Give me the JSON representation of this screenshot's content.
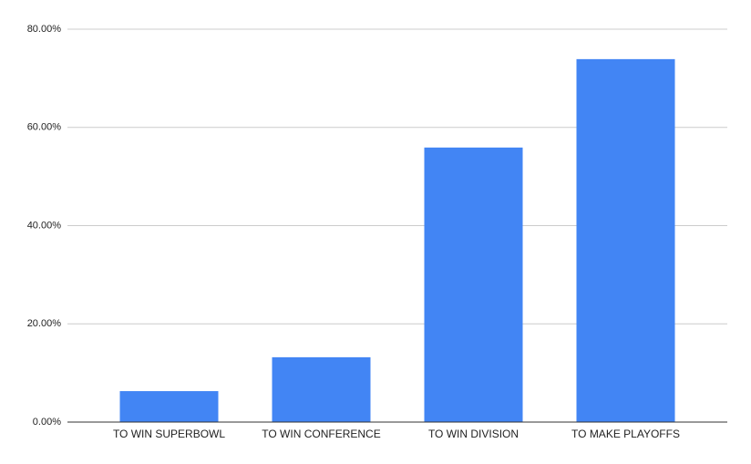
{
  "chart_data": {
    "type": "bar",
    "categories": [
      "TO WIN SUPERBOWL",
      "TO WIN CONFERENCE",
      "TO WIN DIVISION",
      "TO MAKE PLAYOFFS"
    ],
    "values": [
      6.3,
      13.2,
      55.9,
      73.9
    ],
    "color": "#4285f4",
    "ylim": [
      0,
      80
    ],
    "yticks": [
      {
        "value": 0,
        "label": "0.00%"
      },
      {
        "value": 20,
        "label": "20.00%"
      },
      {
        "value": 40,
        "label": "40.00%"
      },
      {
        "value": 60,
        "label": "60.00%"
      },
      {
        "value": 80,
        "label": "80.00%"
      }
    ],
    "grid": true
  }
}
